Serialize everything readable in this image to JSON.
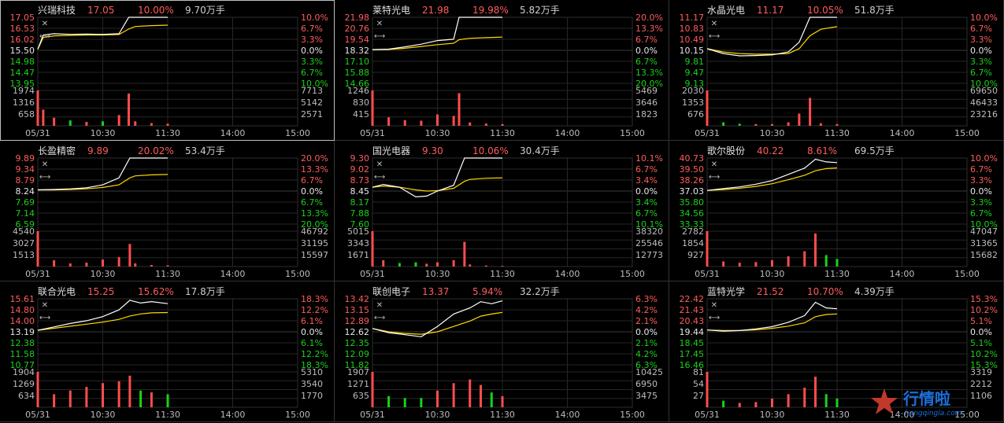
{
  "time_ticks": [
    "05/31",
    "10:30",
    "11:30",
    "14:00",
    "15:00"
  ],
  "colors": {
    "up": "#ff4d4d",
    "down": "#19d219",
    "flat": "#e8e8e8",
    "price_line": "#ffffff",
    "avg_line": "#ffd700",
    "grid": "#262626",
    "axis_text": "#bcbcbc"
  },
  "watermark": {
    "title": "行情啦",
    "subtitle": "hangqingla.com"
  },
  "icons": {
    "close": "close-icon",
    "expand": "expand-arrows-icon"
  },
  "panels": [
    {
      "name": "兴瑞科技",
      "price": "17.05",
      "change_pct": "10.00%",
      "volume": "9.70万手",
      "selected": true,
      "y_labels": [
        "17.05",
        "16.53",
        "16.02",
        "15.50",
        "14.98",
        "14.47",
        "13.95"
      ],
      "pct_labels": [
        "10.0%",
        "6.7%",
        "3.3%",
        "0.0%",
        "3.3%",
        "6.7%",
        "10.0%"
      ],
      "vol_left_labels": [
        "1974",
        "1316",
        "658"
      ],
      "vol_right_labels": [
        "7713",
        "5142",
        "2571"
      ]
    },
    {
      "name": "莱特光电",
      "price": "21.98",
      "change_pct": "19.98%",
      "volume": "5.82万手",
      "selected": false,
      "y_labels": [
        "21.98",
        "20.76",
        "19.54",
        "18.32",
        "17.10",
        "15.88",
        "14.66"
      ],
      "pct_labels": [
        "20.0%",
        "13.3%",
        "6.7%",
        "0.0%",
        "6.7%",
        "13.3%",
        "20.0%"
      ],
      "vol_left_labels": [
        "1246",
        "830",
        "415"
      ],
      "vol_right_labels": [
        "5469",
        "3646",
        "1823"
      ]
    },
    {
      "name": "水晶光电",
      "price": "11.17",
      "change_pct": "10.05%",
      "volume": "51.8万手",
      "selected": false,
      "y_labels": [
        "11.17",
        "10.83",
        "10.49",
        "10.15",
        "9.81",
        "9.47",
        "9.13"
      ],
      "pct_labels": [
        "10.0%",
        "6.7%",
        "3.3%",
        "0.0%",
        "3.3%",
        "6.7%",
        "10.0%"
      ],
      "vol_left_labels": [
        "2030",
        "1353",
        "676"
      ],
      "vol_right_labels": [
        "69650",
        "46433",
        "23216"
      ]
    },
    {
      "name": "长盈精密",
      "price": "9.89",
      "change_pct": "20.02%",
      "volume": "53.4万手",
      "selected": false,
      "y_labels": [
        "9.89",
        "9.34",
        "8.79",
        "8.24",
        "7.69",
        "7.14",
        "6.59"
      ],
      "pct_labels": [
        "20.0%",
        "13.3%",
        "6.7%",
        "0.0%",
        "6.7%",
        "13.3%",
        "20.0%"
      ],
      "vol_left_labels": [
        "4540",
        "3027",
        "1513"
      ],
      "vol_right_labels": [
        "46792",
        "31195",
        "15597"
      ]
    },
    {
      "name": "国光电器",
      "price": "9.30",
      "change_pct": "10.06%",
      "volume": "30.4万手",
      "selected": false,
      "y_labels": [
        "9.30",
        "9.02",
        "8.73",
        "8.45",
        "8.17",
        "7.88",
        "7.60"
      ],
      "pct_labels": [
        "10.1%",
        "6.7%",
        "3.4%",
        "0.0%",
        "3.4%",
        "6.7%",
        "10.1%"
      ],
      "vol_left_labels": [
        "5015",
        "3343",
        "1671"
      ],
      "vol_right_labels": [
        "38320",
        "25546",
        "12773"
      ]
    },
    {
      "name": "歌尔股份",
      "price": "40.22",
      "change_pct": "8.61%",
      "volume": "69.5万手",
      "selected": false,
      "y_labels": [
        "40.73",
        "39.50",
        "38.26",
        "37.03",
        "35.80",
        "34.56",
        "33.33"
      ],
      "pct_labels": [
        "10.0%",
        "6.7%",
        "3.3%",
        "0.0%",
        "3.3%",
        "6.7%",
        "10.0%"
      ],
      "vol_left_labels": [
        "2782",
        "1854",
        "927"
      ],
      "vol_right_labels": [
        "47047",
        "31365",
        "15682"
      ]
    },
    {
      "name": "联合光电",
      "price": "15.25",
      "change_pct": "15.62%",
      "volume": "17.8万手",
      "selected": false,
      "y_labels": [
        "15.61",
        "14.80",
        "14.00",
        "13.19",
        "12.38",
        "11.58",
        "10.77"
      ],
      "pct_labels": [
        "18.3%",
        "12.2%",
        "6.1%",
        "0.0%",
        "6.1%",
        "12.2%",
        "18.3%"
      ],
      "vol_left_labels": [
        "1904",
        "1269",
        "634"
      ],
      "vol_right_labels": [
        "5310",
        "3540",
        "1770"
      ]
    },
    {
      "name": "联创电子",
      "price": "13.37",
      "change_pct": "5.94%",
      "volume": "32.2万手",
      "selected": false,
      "y_labels": [
        "13.42",
        "13.15",
        "12.89",
        "12.62",
        "12.35",
        "12.09",
        "11.82"
      ],
      "pct_labels": [
        "6.3%",
        "4.2%",
        "2.1%",
        "0.0%",
        "2.1%",
        "4.2%",
        "6.3%"
      ],
      "vol_left_labels": [
        "1907",
        "1271",
        "635"
      ],
      "vol_right_labels": [
        "10425",
        "6950",
        "3475"
      ]
    },
    {
      "name": "蓝特光学",
      "price": "21.52",
      "change_pct": "10.70%",
      "volume": "4.39万手",
      "selected": false,
      "y_labels": [
        "22.42",
        "21.43",
        "20.43",
        "19.44",
        "18.45",
        "17.45",
        "16.46"
      ],
      "pct_labels": [
        "15.3%",
        "10.2%",
        "5.1%",
        "0.0%",
        "5.1%",
        "10.2%",
        "15.3%"
      ],
      "vol_left_labels": [
        "81",
        "54",
        "27"
      ],
      "vol_right_labels": [
        "3319",
        "2212",
        "1106"
      ]
    }
  ],
  "chart_data": [
    {
      "type": "line",
      "stock": "兴瑞科技",
      "prev_close": 15.5,
      "ylim": [
        13.95,
        17.05
      ],
      "x": [
        "09:30",
        "09:35",
        "09:45",
        "10:00",
        "10:15",
        "10:30",
        "10:45",
        "10:54",
        "11:00",
        "11:15",
        "11:30"
      ],
      "series": [
        {
          "values": [
            15.55,
            16.22,
            16.28,
            16.25,
            16.26,
            16.25,
            16.28,
            17.05,
            17.05,
            17.05,
            17.05
          ]
        },
        {
          "values": [
            15.55,
            16.1,
            16.18,
            16.2,
            16.22,
            16.22,
            16.24,
            16.5,
            16.62,
            16.66,
            16.68
          ]
        }
      ],
      "volume": [
        1974,
        900,
        450,
        300,
        220,
        250,
        600,
        1800,
        250,
        150,
        120
      ]
    },
    {
      "type": "line",
      "stock": "莱特光电",
      "prev_close": 18.32,
      "ylim": [
        14.66,
        21.98
      ],
      "x": [
        "09:30",
        "09:45",
        "10:00",
        "10:15",
        "10:30",
        "10:45",
        "10:50",
        "11:00",
        "11:15",
        "11:30"
      ],
      "series": [
        {
          "values": [
            18.4,
            18.45,
            18.7,
            19.0,
            19.4,
            19.55,
            21.98,
            21.98,
            21.98,
            21.98
          ]
        },
        {
          "values": [
            18.4,
            18.42,
            18.55,
            18.75,
            18.95,
            19.1,
            19.5,
            19.65,
            19.72,
            19.78
          ]
        }
      ],
      "volume": [
        1246,
        300,
        200,
        180,
        400,
        350,
        1150,
        120,
        80,
        60
      ]
    },
    {
      "type": "line",
      "stock": "水晶光电",
      "prev_close": 10.15,
      "ylim": [
        9.13,
        11.17
      ],
      "x": [
        "09:30",
        "09:45",
        "10:00",
        "10:15",
        "10:30",
        "10:45",
        "10:55",
        "11:05",
        "11:15",
        "11:30"
      ],
      "series": [
        {
          "values": [
            10.2,
            10.05,
            9.98,
            9.99,
            10.01,
            10.1,
            10.4,
            11.17,
            11.17,
            11.17
          ],
          "name": ""
        },
        {
          "values": [
            10.2,
            10.1,
            10.05,
            10.03,
            10.03,
            10.05,
            10.2,
            10.6,
            10.8,
            10.88
          ]
        }
      ],
      "volume": [
        2030,
        200,
        120,
        100,
        100,
        200,
        700,
        1600,
        150,
        100
      ]
    },
    {
      "type": "line",
      "stock": "长盈精密",
      "prev_close": 8.24,
      "ylim": [
        6.59,
        9.89
      ],
      "x": [
        "09:30",
        "09:45",
        "10:00",
        "10:15",
        "10:30",
        "10:45",
        "10:55",
        "11:00",
        "11:15",
        "11:30"
      ],
      "series": [
        {
          "values": [
            8.3,
            8.32,
            8.35,
            8.4,
            8.55,
            8.9,
            9.89,
            9.89,
            9.89,
            9.89
          ]
        },
        {
          "values": [
            8.3,
            8.3,
            8.32,
            8.35,
            8.42,
            8.55,
            8.9,
            9.0,
            9.05,
            9.07
          ]
        }
      ],
      "volume": [
        4540,
        800,
        400,
        500,
        900,
        1200,
        2900,
        400,
        200,
        150
      ]
    },
    {
      "type": "line",
      "stock": "国光电器",
      "prev_close": 8.45,
      "ylim": [
        7.6,
        9.3
      ],
      "x": [
        "09:30",
        "09:40",
        "09:55",
        "10:10",
        "10:20",
        "10:30",
        "10:45",
        "10:55",
        "11:00",
        "11:15",
        "11:30"
      ],
      "series": [
        {
          "values": [
            8.55,
            8.62,
            8.55,
            8.3,
            8.32,
            8.45,
            8.6,
            9.3,
            9.3,
            9.3,
            9.3
          ]
        },
        {
          "values": [
            8.55,
            8.58,
            8.55,
            8.48,
            8.45,
            8.46,
            8.52,
            8.7,
            8.75,
            8.78,
            8.79
          ]
        }
      ],
      "volume": [
        5015,
        900,
        500,
        600,
        400,
        600,
        900,
        3500,
        300,
        150,
        100
      ]
    },
    {
      "type": "line",
      "stock": "歌尔股份",
      "prev_close": 37.03,
      "ylim": [
        33.33,
        40.73
      ],
      "x": [
        "09:30",
        "09:45",
        "10:00",
        "10:15",
        "10:30",
        "10:45",
        "11:00",
        "11:10",
        "11:20",
        "11:30"
      ],
      "series": [
        {
          "values": [
            37.1,
            37.3,
            37.5,
            37.8,
            38.2,
            38.9,
            39.6,
            40.6,
            40.3,
            40.22
          ]
        },
        {
          "values": [
            37.1,
            37.2,
            37.35,
            37.55,
            37.85,
            38.3,
            38.8,
            39.3,
            39.55,
            39.62
          ]
        }
      ],
      "volume": [
        2782,
        400,
        300,
        350,
        500,
        800,
        1200,
        2600,
        900,
        600
      ]
    },
    {
      "type": "line",
      "stock": "联合光电",
      "prev_close": 13.19,
      "ylim": [
        10.77,
        15.61
      ],
      "x": [
        "09:30",
        "09:45",
        "10:00",
        "10:15",
        "10:30",
        "10:45",
        "10:55",
        "11:05",
        "11:15",
        "11:30"
      ],
      "series": [
        {
          "values": [
            13.3,
            13.55,
            13.8,
            14.0,
            14.3,
            14.8,
            15.5,
            15.3,
            15.4,
            15.25
          ]
        },
        {
          "values": [
            13.3,
            13.45,
            13.6,
            13.75,
            13.9,
            14.1,
            14.35,
            14.5,
            14.58,
            14.6
          ]
        }
      ],
      "volume": [
        1904,
        700,
        900,
        1100,
        1300,
        1400,
        1700,
        900,
        800,
        700
      ]
    },
    {
      "type": "line",
      "stock": "联创电子",
      "prev_close": 12.62,
      "ylim": [
        11.82,
        13.42
      ],
      "x": [
        "09:30",
        "09:45",
        "10:00",
        "10:15",
        "10:30",
        "10:45",
        "11:00",
        "11:10",
        "11:20",
        "11:30"
      ],
      "series": [
        {
          "values": [
            12.7,
            12.6,
            12.55,
            12.5,
            12.75,
            13.05,
            13.2,
            13.35,
            13.3,
            13.37
          ]
        },
        {
          "values": [
            12.7,
            12.62,
            12.58,
            12.56,
            12.62,
            12.75,
            12.88,
            13.0,
            13.05,
            13.09
          ]
        }
      ],
      "volume": [
        1907,
        600,
        500,
        500,
        900,
        1300,
        1500,
        1200,
        800,
        600
      ]
    },
    {
      "type": "line",
      "stock": "蓝特光学",
      "prev_close": 19.44,
      "ylim": [
        16.46,
        22.42
      ],
      "x": [
        "09:30",
        "09:45",
        "10:00",
        "10:15",
        "10:30",
        "10:45",
        "11:00",
        "11:10",
        "11:20",
        "11:30"
      ],
      "series": [
        {
          "values": [
            19.6,
            19.5,
            19.55,
            19.7,
            19.9,
            20.3,
            20.9,
            22.1,
            21.6,
            21.52
          ]
        },
        {
          "values": [
            19.6,
            19.55,
            19.55,
            19.62,
            19.75,
            19.95,
            20.25,
            20.8,
            21.0,
            21.05
          ]
        }
      ],
      "volume": [
        81,
        15,
        10,
        12,
        20,
        30,
        45,
        70,
        30,
        20
      ]
    }
  ]
}
